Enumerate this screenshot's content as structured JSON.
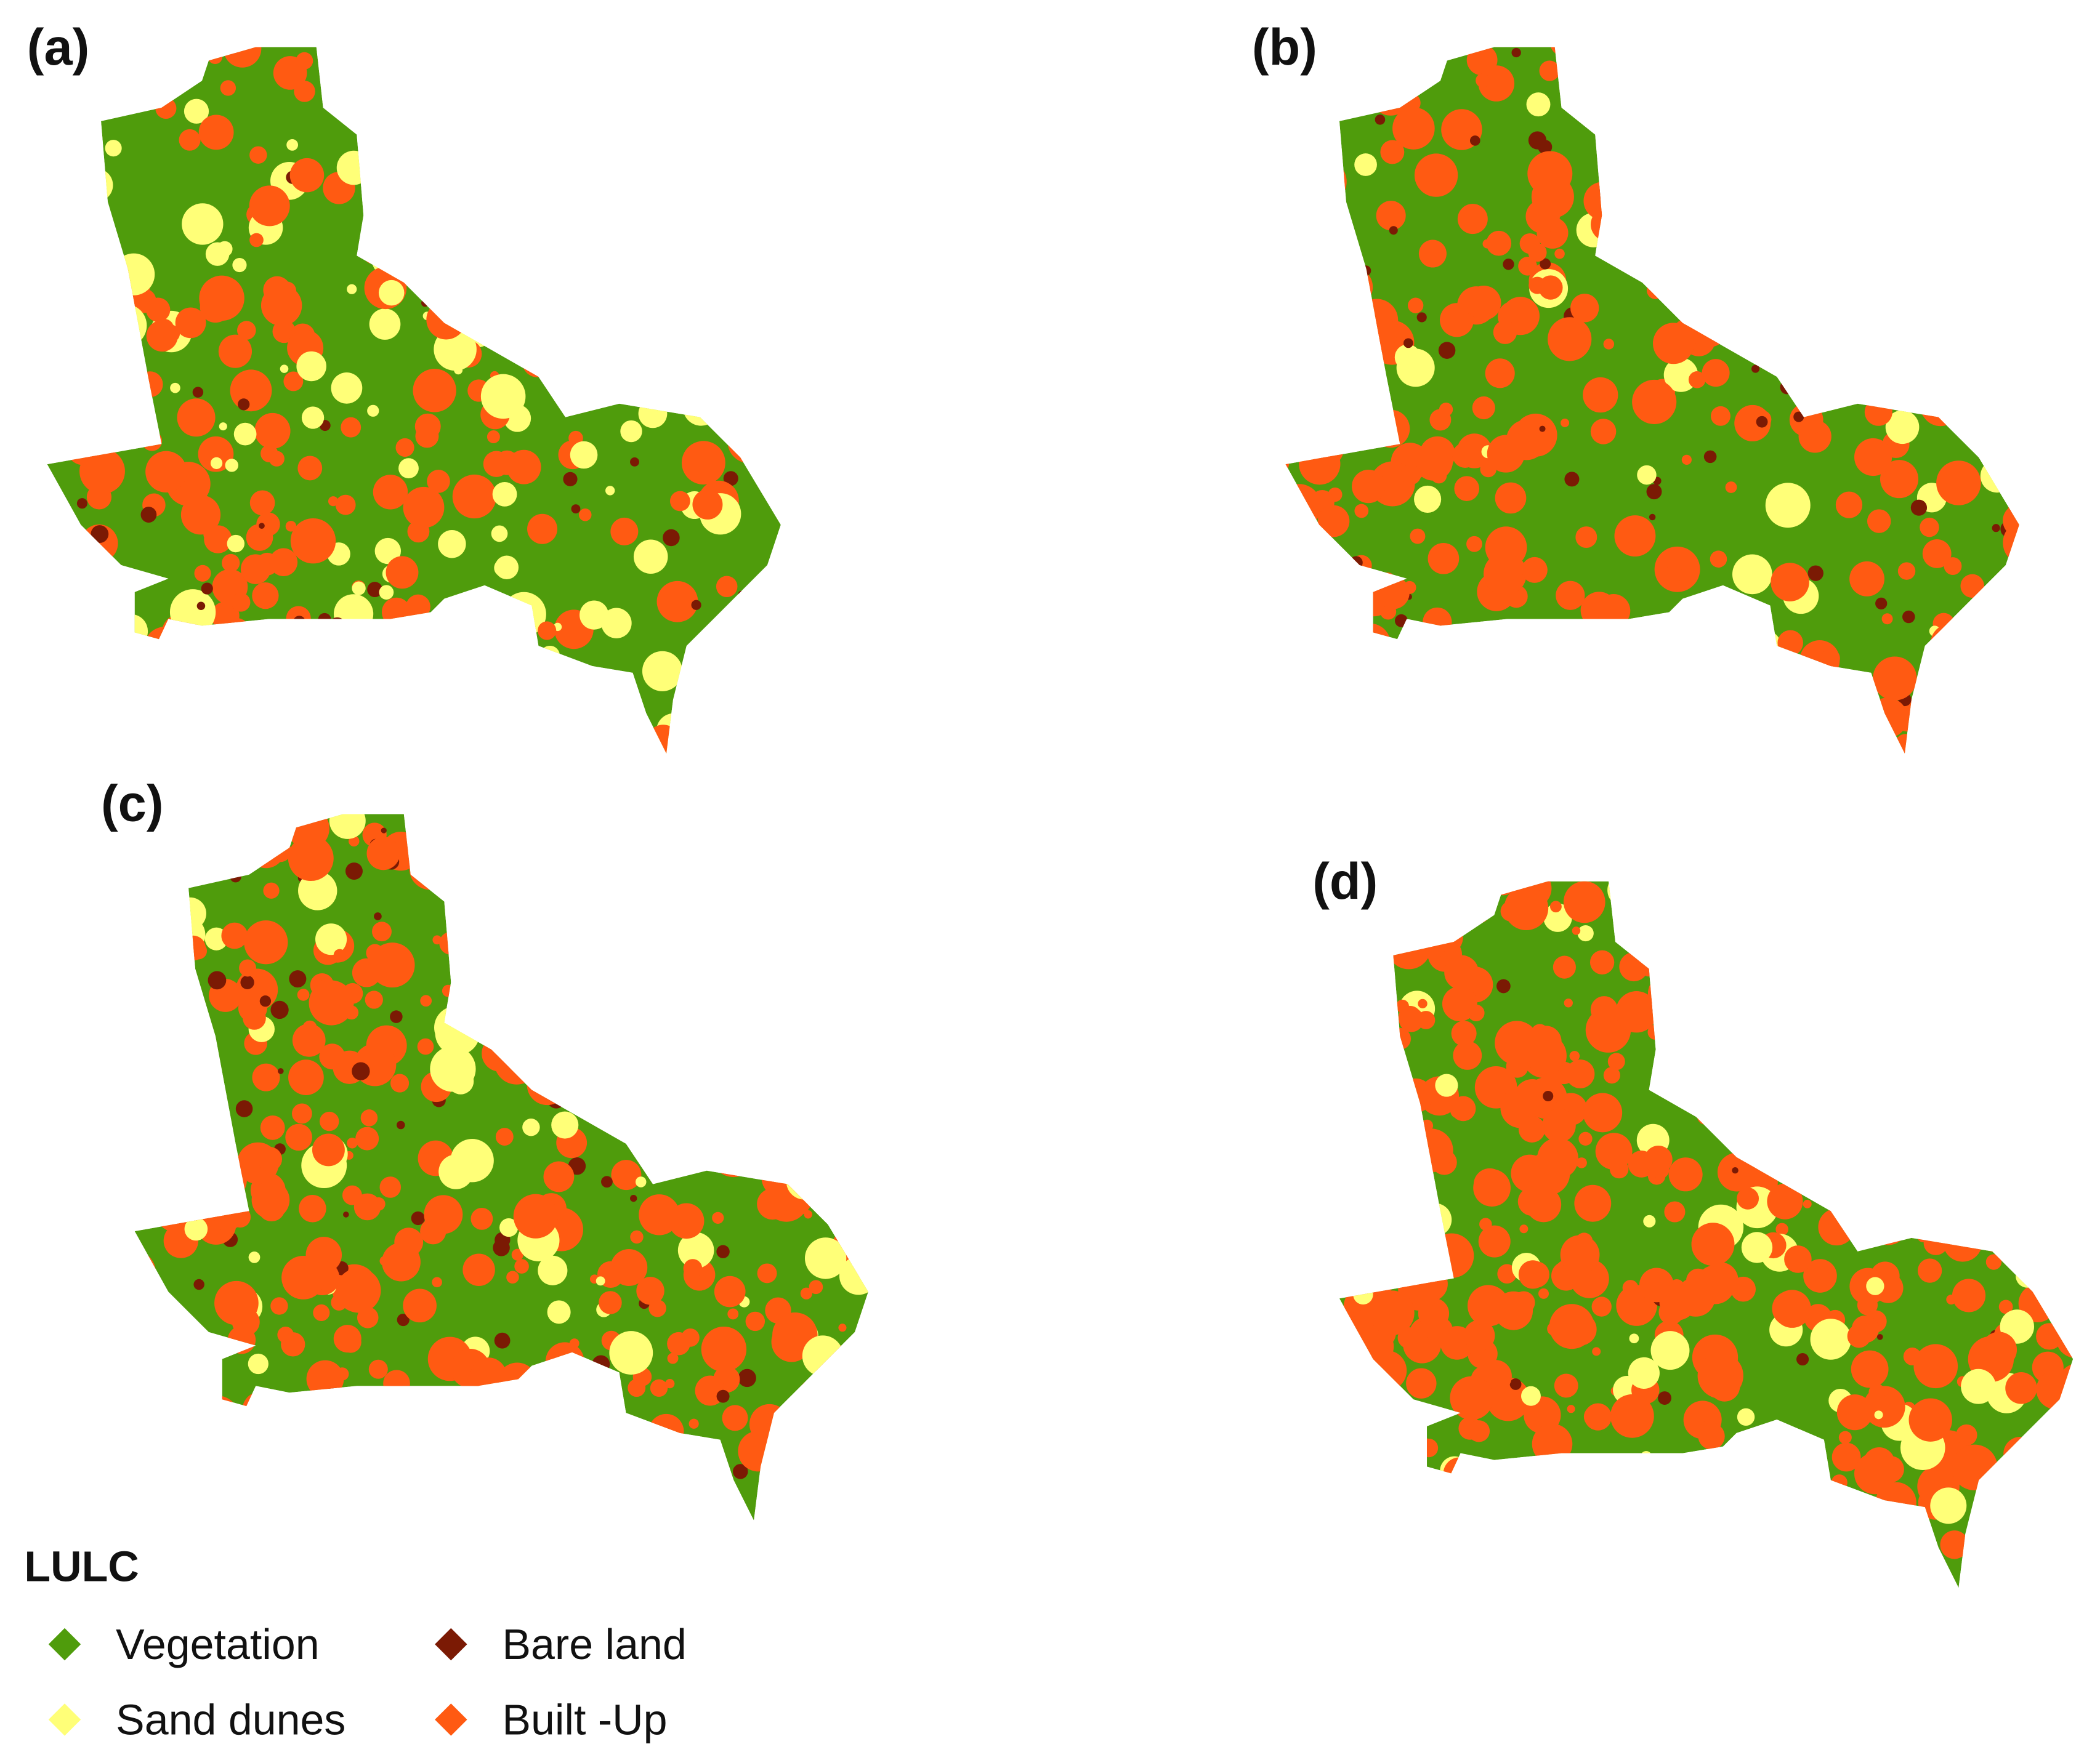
{
  "panels": [
    {
      "label": "(a)"
    },
    {
      "label": "(b)"
    },
    {
      "label": "(c)"
    },
    {
      "label": "(d)"
    }
  ],
  "legend": {
    "title": "LULC",
    "items": [
      {
        "label": "Vegetation",
        "color": "#4f9c0c"
      },
      {
        "label": "Sand dunes",
        "color": "#ffff78"
      },
      {
        "label": "Bare land",
        "color": "#7b1a04"
      },
      {
        "label": "Built -Up",
        "color": "#ff5a12"
      }
    ]
  }
}
